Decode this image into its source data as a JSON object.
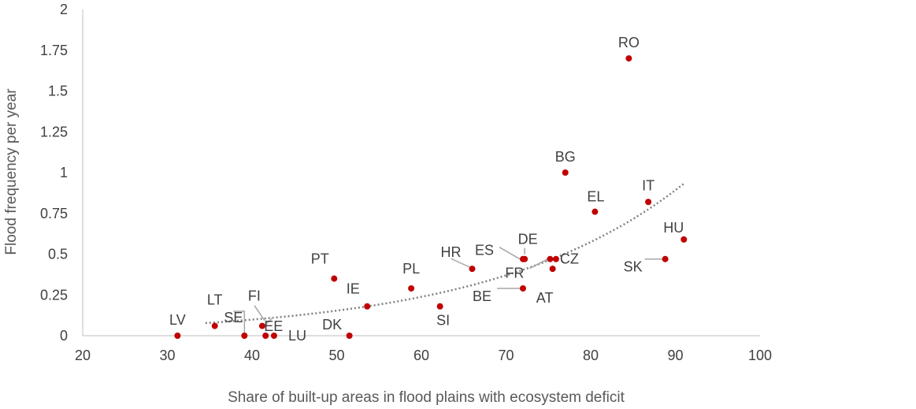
{
  "chart_data": {
    "type": "scatter",
    "title": "",
    "xlabel": "Share of built-up areas in flood plains with ecosystem deficit",
    "ylabel": "Flood frequency per year",
    "xlim": [
      20,
      100
    ],
    "ylim": [
      0,
      2
    ],
    "xticks": [
      20,
      30,
      40,
      50,
      60,
      70,
      80,
      90,
      100
    ],
    "yticks": [
      0,
      0.25,
      0.5,
      0.75,
      1,
      1.25,
      1.5,
      1.75,
      2
    ],
    "xtick_labels": [
      "20",
      "30",
      "40",
      "50",
      "60",
      "70",
      "80",
      "90",
      "100"
    ],
    "ytick_labels": [
      "0",
      "0.25",
      "0.5",
      "0.75",
      "1",
      "1.25",
      "1.5",
      "1.75",
      "2"
    ],
    "grid": false,
    "marker_color": "#c00000",
    "trendline": {
      "type": "exponential",
      "style": "dotted",
      "color": "#808080",
      "x_range": [
        34.5,
        91
      ],
      "a": 0.017,
      "b": 0.044
    },
    "points": [
      {
        "label": "LV",
        "x": 31.2,
        "y": 0
      },
      {
        "label": "LT",
        "x": 35.6,
        "y": 0.06
      },
      {
        "label": "SE",
        "x": 39.1,
        "y": 0
      },
      {
        "label": "FI",
        "x": 41.2,
        "y": 0.06
      },
      {
        "label": "EE",
        "x": 41.6,
        "y": 0
      },
      {
        "label": "LU",
        "x": 42.6,
        "y": 0
      },
      {
        "label": "PT",
        "x": 49.7,
        "y": 0.35
      },
      {
        "label": "DK",
        "x": 51.5,
        "y": 0
      },
      {
        "label": "IE",
        "x": 53.6,
        "y": 0.18
      },
      {
        "label": "PL",
        "x": 58.8,
        "y": 0.29
      },
      {
        "label": "SI",
        "x": 62.2,
        "y": 0.18
      },
      {
        "label": "HR",
        "x": 66,
        "y": 0.41
      },
      {
        "label": "BE",
        "x": 72,
        "y": 0.29
      },
      {
        "label": "ES",
        "x": 72,
        "y": 0.47
      },
      {
        "label": "DE",
        "x": 72.2,
        "y": 0.47
      },
      {
        "label": "FR",
        "x": 75.2,
        "y": 0.47
      },
      {
        "label": "AT",
        "x": 75.5,
        "y": 0.41
      },
      {
        "label": "CZ",
        "x": 75.9,
        "y": 0.47
      },
      {
        "label": "BG",
        "x": 77,
        "y": 1
      },
      {
        "label": "EL",
        "x": 80.5,
        "y": 0.76
      },
      {
        "label": "RO",
        "x": 84.5,
        "y": 1.7
      },
      {
        "label": "IT",
        "x": 86.8,
        "y": 0.82
      },
      {
        "label": "SK",
        "x": 88.8,
        "y": 0.47
      },
      {
        "label": "HU",
        "x": 91,
        "y": 0.59
      }
    ]
  }
}
